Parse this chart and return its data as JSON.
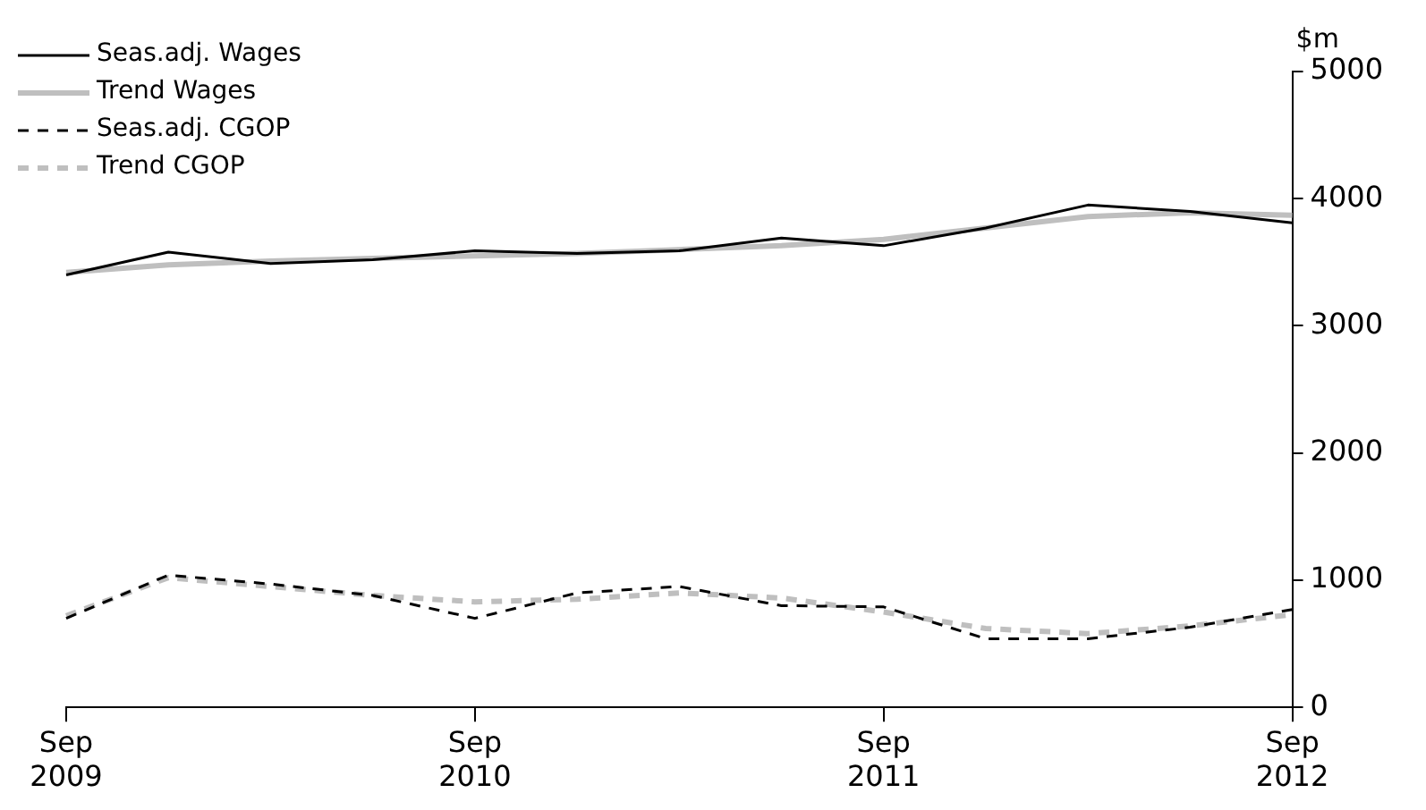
{
  "chart_data": {
    "type": "line",
    "ylabel": "$m",
    "categories": [
      "Sep 2009",
      null,
      null,
      null,
      "Sep 2010",
      null,
      null,
      null,
      "Sep 2011",
      null,
      null,
      null,
      "Sep 2012"
    ],
    "series": [
      {
        "name": "Seas.adj. Wages",
        "color": "#000000",
        "line_style": "solid",
        "values": [
          3400,
          3580,
          3490,
          3520,
          3590,
          3570,
          3590,
          3690,
          3630,
          3770,
          3950,
          3900,
          3810
        ]
      },
      {
        "name": "Trend Wages",
        "color": "#bfbfbf",
        "line_style": "solid",
        "values": [
          3420,
          3480,
          3510,
          3530,
          3550,
          3570,
          3600,
          3630,
          3680,
          3770,
          3860,
          3890,
          3870
        ]
      },
      {
        "name": "Seas.adj. CGOP",
        "color": "#000000",
        "line_style": "dashed",
        "values": [
          700,
          1040,
          970,
          880,
          700,
          900,
          950,
          800,
          790,
          540,
          540,
          630,
          770
        ]
      },
      {
        "name": "Trend CGOP",
        "color": "#bfbfbf",
        "line_style": "dashed",
        "values": [
          720,
          1020,
          950,
          880,
          830,
          850,
          900,
          860,
          750,
          620,
          580,
          640,
          730
        ]
      }
    ],
    "ylim": [
      0,
      5000
    ],
    "yticks": [
      0,
      1000,
      2000,
      3000,
      4000,
      5000
    ],
    "grid": false,
    "legend": "top left",
    "marker": "none"
  }
}
